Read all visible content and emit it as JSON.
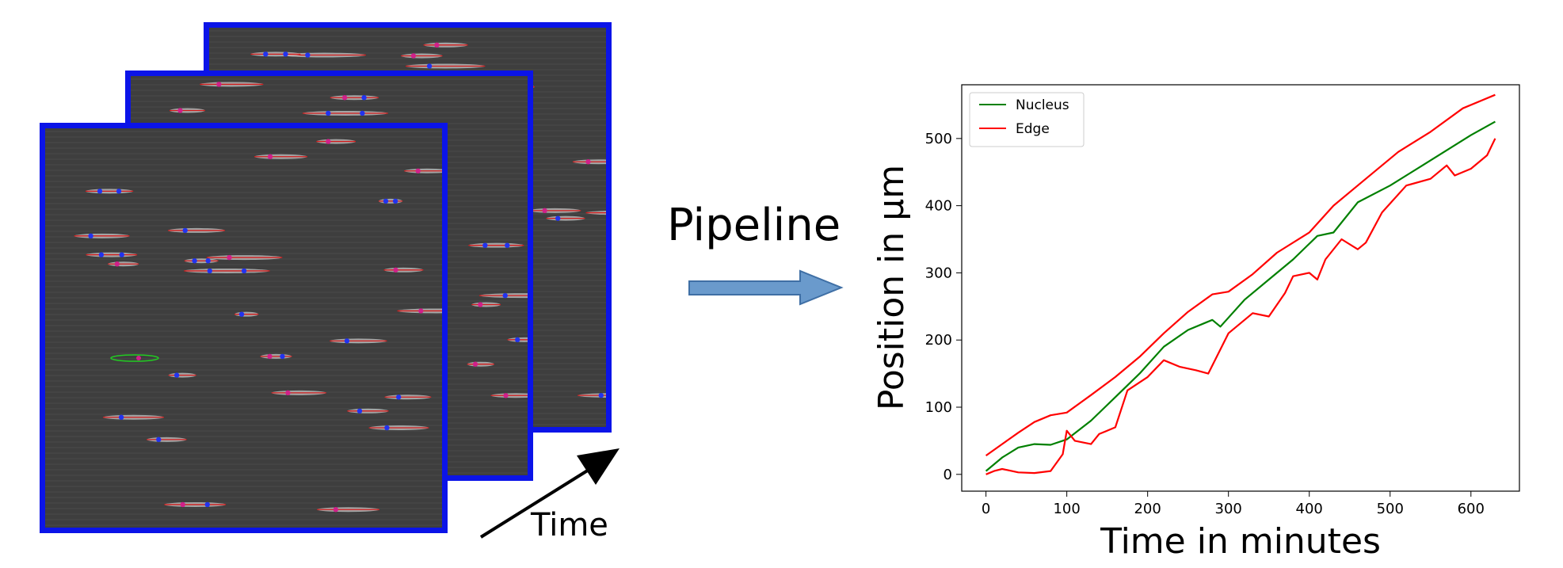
{
  "diagram": {
    "time_label": "Time",
    "pipeline_label": "Pipeline",
    "colors": {
      "frame_border": "#0b14e8",
      "microscopy_bg": "#3e3e3e",
      "arrow_fill": "#6a9acc",
      "arrow_stroke": "#3f6fa5"
    }
  },
  "chart_data": {
    "type": "line",
    "xlabel": "Time in minutes",
    "ylabel": "Position in µm",
    "xlim": [
      -30,
      660
    ],
    "ylim": [
      -25,
      580
    ],
    "xticks": [
      0,
      100,
      200,
      300,
      400,
      500,
      600
    ],
    "yticks": [
      0,
      100,
      200,
      300,
      400,
      500
    ],
    "grid": false,
    "legend_position": "top-left",
    "series": [
      {
        "name": "Nucleus",
        "color": "#008000",
        "x": [
          0,
          20,
          40,
          60,
          80,
          100,
          130,
          160,
          190,
          220,
          250,
          280,
          290,
          320,
          350,
          380,
          410,
          430,
          460,
          500,
          540,
          580,
          600,
          630
        ],
        "y": [
          5,
          25,
          40,
          45,
          44,
          52,
          80,
          115,
          150,
          190,
          215,
          230,
          220,
          260,
          290,
          320,
          355,
          360,
          405,
          430,
          460,
          490,
          505,
          525
        ]
      },
      {
        "name": "Edge",
        "color": "#ff0000",
        "series_group": "upper",
        "x": [
          0,
          20,
          40,
          60,
          80,
          100,
          130,
          160,
          190,
          220,
          250,
          280,
          300,
          330,
          360,
          400,
          430,
          470,
          510,
          550,
          590,
          630
        ],
        "y": [
          28,
          45,
          62,
          78,
          88,
          92,
          118,
          145,
          175,
          210,
          242,
          268,
          272,
          298,
          330,
          360,
          400,
          440,
          480,
          510,
          545,
          565
        ]
      },
      {
        "name": "",
        "color": "#ff0000",
        "x": [
          0,
          10,
          20,
          40,
          60,
          80,
          95,
          100,
          110,
          130,
          140,
          160,
          175,
          200,
          220,
          240,
          260,
          275,
          300,
          330,
          350,
          370,
          380,
          400,
          410,
          420,
          440,
          460,
          470,
          490,
          520,
          550,
          570,
          580,
          600,
          620,
          630
        ],
        "y": [
          0,
          5,
          8,
          3,
          2,
          5,
          30,
          65,
          50,
          45,
          60,
          70,
          125,
          145,
          170,
          160,
          155,
          150,
          210,
          240,
          235,
          270,
          295,
          300,
          290,
          320,
          350,
          335,
          345,
          390,
          430,
          440,
          460,
          445,
          455,
          475,
          500
        ]
      }
    ]
  }
}
